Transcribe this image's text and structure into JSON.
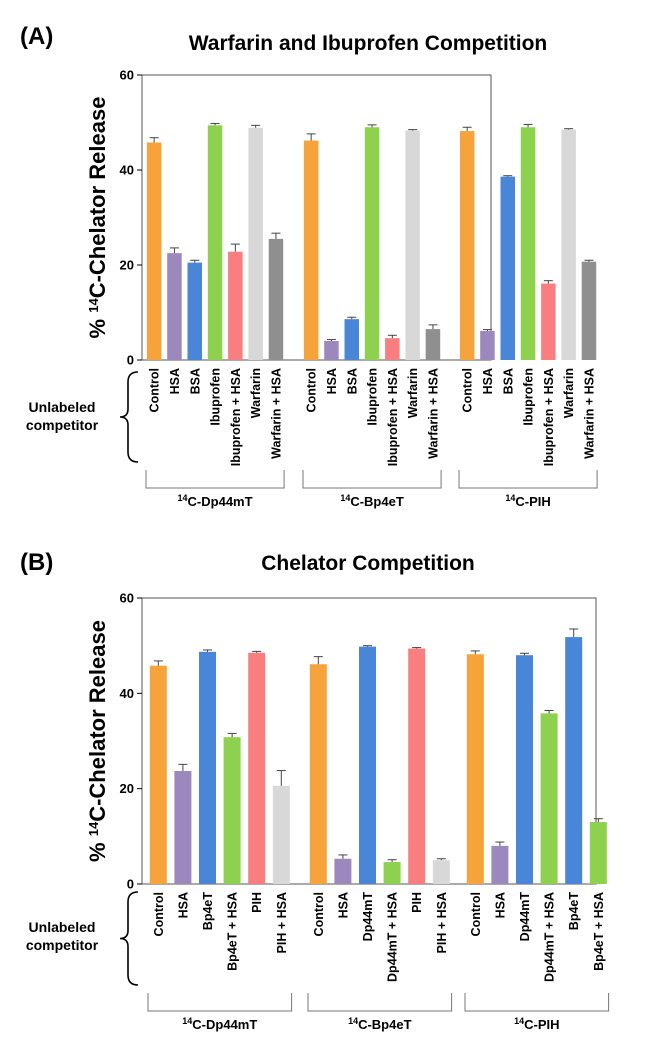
{
  "colors": {
    "Control": "#F7A33C",
    "HSA": "#9C88BC",
    "BSA": "#4A86D8",
    "Ibuprofen": "#8DD14F",
    "Ibuprofen + HSA": "#F97E80",
    "Warfarin": "#D8D8D8",
    "Warfarin + HSA": "#8F8F8F",
    "Bp4eT": "#4A86D8",
    "Bp4eT + HSA": "#8DD14F",
    "PIH": "#F97E80",
    "PIH + HSA": "#D8D8D8",
    "Dp44mT": "#4A86D8",
    "Dp44mT + HSA": "#8DD14F"
  },
  "chart_data": [
    {
      "type": "bar",
      "panel_label": "(A)",
      "title": "Warfarin and Ibuprofen Competition",
      "ylabel": "% 14C-Chelator Release",
      "ylabel_prefix": "% ",
      "ylabel_sup": "14",
      "ylabel_rest": "C-Chelator Release",
      "ylim": [
        0,
        60
      ],
      "yticks": [
        "0",
        "20",
        "40",
        "60"
      ],
      "side_label": [
        "Unlabeled",
        "competitor"
      ],
      "groups": [
        {
          "label": "14C-Dp44mT",
          "sup": "14",
          "rest": "C-Dp44mT",
          "categories": [
            "Control",
            "HSA",
            "BSA",
            "Ibuprofen",
            "Ibuprofen + HSA",
            "Warfarin",
            "Warfarin + HSA"
          ],
          "values": [
            45.8,
            22.5,
            20.5,
            49.4,
            22.8,
            48.9,
            25.5
          ],
          "errors": [
            1.0,
            1.1,
            0.5,
            0.4,
            1.6,
            0.5,
            1.2
          ]
        },
        {
          "label": "14C-Bp4eT",
          "sup": "14",
          "rest": "C-Bp4eT",
          "categories": [
            "Control",
            "HSA",
            "BSA",
            "Ibuprofen",
            "Ibuprofen + HSA",
            "Warfarin",
            "Warfarin + HSA"
          ],
          "values": [
            46.2,
            4.0,
            8.6,
            49.0,
            4.6,
            48.3,
            6.5
          ],
          "errors": [
            1.4,
            0.3,
            0.4,
            0.5,
            0.6,
            0.2,
            0.9
          ]
        },
        {
          "label": "14C-PIH",
          "sup": "14",
          "rest": "C-PIH",
          "categories": [
            "Control",
            "HSA",
            "BSA",
            "Ibuprofen",
            "Ibuprofen + HSA",
            "Warfarin",
            "Warfarin + HSA"
          ],
          "values": [
            48.2,
            6.1,
            38.6,
            49.0,
            16.1,
            48.5,
            20.7
          ],
          "errors": [
            0.8,
            0.3,
            0.2,
            0.6,
            0.6,
            0.2,
            0.3
          ]
        }
      ]
    },
    {
      "type": "bar",
      "panel_label": "(B)",
      "title": "Chelator Competition",
      "ylabel": "% 14C-Chelator Release",
      "ylabel_prefix": "% ",
      "ylabel_sup": "14",
      "ylabel_rest": "C-Chelator Release",
      "ylim": [
        0,
        60
      ],
      "yticks": [
        "0",
        "20",
        "40",
        "60"
      ],
      "side_label": [
        "Unlabeled",
        "competitor"
      ],
      "groups": [
        {
          "label": "14C-Dp44mT",
          "sup": "14",
          "rest": "C-Dp44mT",
          "categories": [
            "Control",
            "HSA",
            "Bp4eT",
            "Bp4eT + HSA",
            "PIH",
            "PIH + HSA"
          ],
          "values": [
            45.8,
            23.7,
            48.7,
            30.8,
            48.5,
            20.6
          ],
          "errors": [
            1.0,
            1.4,
            0.4,
            0.8,
            0.3,
            3.2
          ]
        },
        {
          "label": "14C-Bp4eT",
          "sup": "14",
          "rest": "C-Bp4eT",
          "categories": [
            "Control",
            "HSA",
            "Dp44mT",
            "Dp44mT + HSA",
            "PIH",
            "PIH + HSA"
          ],
          "values": [
            46.1,
            5.3,
            49.8,
            4.6,
            49.4,
            5.0
          ],
          "errors": [
            1.6,
            0.8,
            0.2,
            0.5,
            0.2,
            0.3
          ]
        },
        {
          "label": "14C-PIH",
          "sup": "14",
          "rest": "C-PIH",
          "categories": [
            "Control",
            "HSA",
            "Dp44mT",
            "Dp44mT + HSA",
            "Bp4eT",
            "Bp4eT + HSA"
          ],
          "values": [
            48.2,
            8.0,
            48.0,
            35.8,
            51.8,
            13.0
          ],
          "errors": [
            0.7,
            0.8,
            0.4,
            0.6,
            1.7,
            0.7
          ]
        }
      ]
    }
  ]
}
